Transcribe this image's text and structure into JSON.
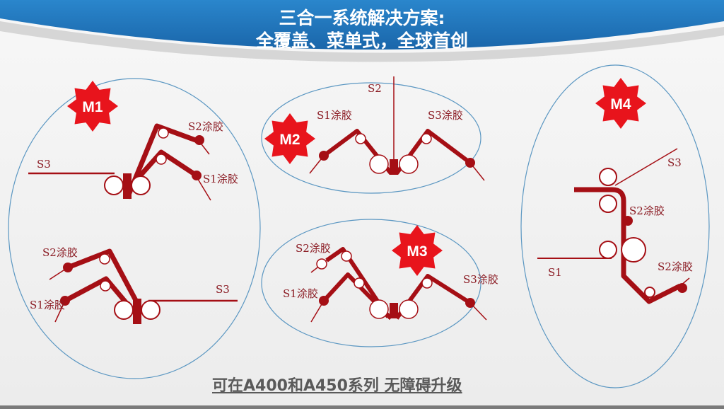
{
  "header": {
    "title_line1": "三合一系统解决方案:",
    "title_line2": "全覆盖、菜单式，全球首创"
  },
  "modules": {
    "m1": {
      "badge": "M1",
      "top": {
        "s3": "S3",
        "s2": "S2涂胶",
        "s1": "S1涂胶"
      },
      "bottom": {
        "s3": "S3",
        "s2": "S2涂胶",
        "s1": "S1涂胶"
      }
    },
    "m2": {
      "badge": "M2",
      "s2": "S2",
      "s1": "S1涂胶",
      "s3": "S3涂胶"
    },
    "m3": {
      "badge": "M3",
      "s2": "S2涂胶",
      "s1": "S1涂胶",
      "s3": "S3涂胶"
    },
    "m4": {
      "badge": "M4",
      "s3": "S3",
      "s2a": "S2涂胶",
      "s1": "S1",
      "s2b": "S2涂胶"
    }
  },
  "footer": {
    "text": "可在A400和A450系列 无障碍升级"
  },
  "colors": {
    "header_blue": "#1f72b8",
    "web_red": "#a50f15",
    "badge_red": "#e8141c",
    "ellipse_stroke": "#5b97c2"
  }
}
